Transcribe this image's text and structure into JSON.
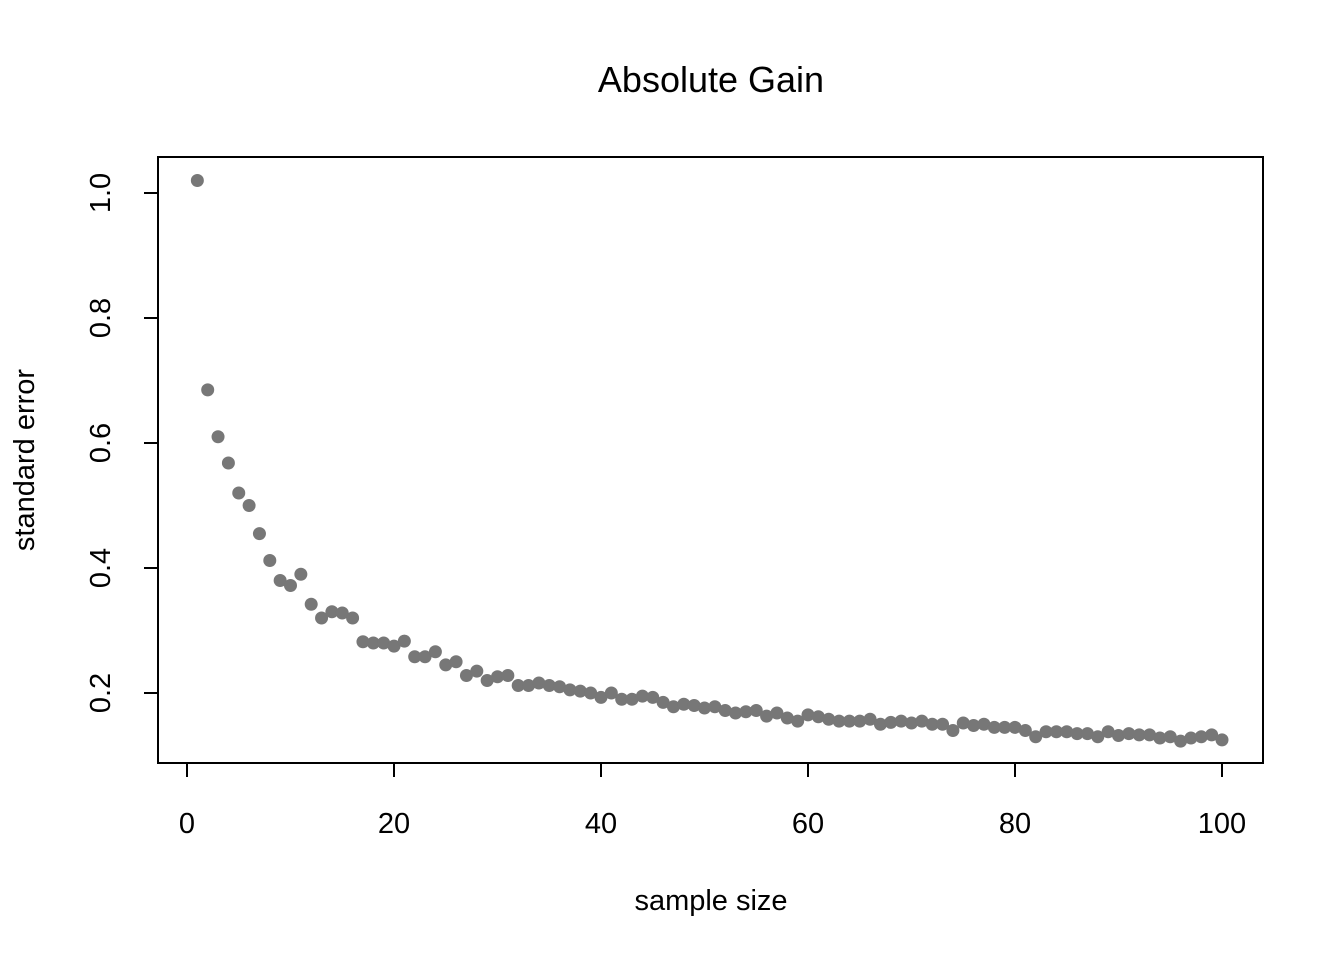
{
  "chart_data": {
    "type": "scatter",
    "title": "Absolute Gain",
    "xlabel": "sample size",
    "ylabel": "standard error",
    "xlim": [
      0,
      100
    ],
    "ylim": [
      0.12,
      1.02
    ],
    "x_ticks": [
      0,
      20,
      40,
      60,
      80,
      100
    ],
    "x_tick_labels": [
      "0",
      "20",
      "40",
      "60",
      "80",
      "100"
    ],
    "y_ticks": [
      0.2,
      0.4,
      0.6,
      0.8,
      1.0
    ],
    "y_tick_labels": [
      "0.2",
      "0.4",
      "0.6",
      "0.8",
      "1.0"
    ],
    "grid": false,
    "point_color": "#777777",
    "x": [
      1,
      2,
      3,
      4,
      5,
      6,
      7,
      8,
      9,
      10,
      11,
      12,
      13,
      14,
      15,
      16,
      17,
      18,
      19,
      20,
      21,
      22,
      23,
      24,
      25,
      26,
      27,
      28,
      29,
      30,
      31,
      32,
      33,
      34,
      35,
      36,
      37,
      38,
      39,
      40,
      41,
      42,
      43,
      44,
      45,
      46,
      47,
      48,
      49,
      50,
      51,
      52,
      53,
      54,
      55,
      56,
      57,
      58,
      59,
      60,
      61,
      62,
      63,
      64,
      65,
      66,
      67,
      68,
      69,
      70,
      71,
      72,
      73,
      74,
      75,
      76,
      77,
      78,
      79,
      80,
      81,
      82,
      83,
      84,
      85,
      86,
      87,
      88,
      89,
      90,
      91,
      92,
      93,
      94,
      95,
      96,
      97,
      98,
      99,
      100
    ],
    "y": [
      1.02,
      0.685,
      0.61,
      0.568,
      0.52,
      0.5,
      0.455,
      0.412,
      0.38,
      0.372,
      0.39,
      0.342,
      0.32,
      0.33,
      0.328,
      0.32,
      0.282,
      0.28,
      0.28,
      0.275,
      0.283,
      0.258,
      0.258,
      0.266,
      0.245,
      0.25,
      0.228,
      0.235,
      0.22,
      0.226,
      0.228,
      0.212,
      0.212,
      0.216,
      0.212,
      0.21,
      0.205,
      0.203,
      0.2,
      0.193,
      0.2,
      0.19,
      0.19,
      0.195,
      0.193,
      0.185,
      0.178,
      0.182,
      0.18,
      0.176,
      0.178,
      0.172,
      0.168,
      0.17,
      0.172,
      0.163,
      0.168,
      0.16,
      0.155,
      0.165,
      0.162,
      0.158,
      0.155,
      0.155,
      0.155,
      0.158,
      0.15,
      0.153,
      0.155,
      0.152,
      0.155,
      0.15,
      0.15,
      0.14,
      0.152,
      0.148,
      0.15,
      0.145,
      0.145,
      0.145,
      0.14,
      0.13,
      0.138,
      0.138,
      0.138,
      0.135,
      0.135,
      0.13,
      0.138,
      0.132,
      0.135,
      0.133,
      0.133,
      0.128,
      0.13,
      0.123,
      0.128,
      0.13,
      0.133,
      0.125
    ]
  }
}
